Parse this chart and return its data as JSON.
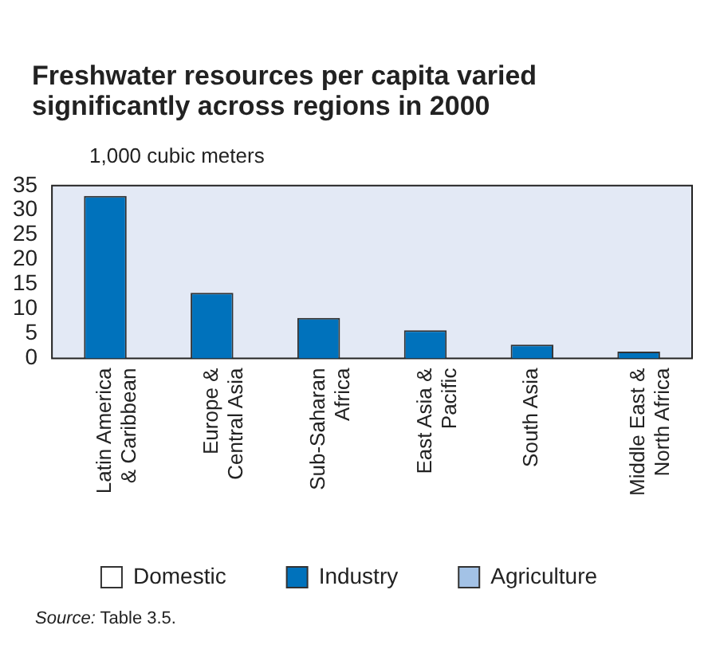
{
  "chart_data": {
    "type": "bar",
    "title": "Freshwater resources per capita varied significantly across regions in 2000",
    "ylabel": "1,000 cubic meters",
    "categories": [
      "Latin America & Caribbean",
      "Europe & Central Asia",
      "Sub-Saharan Africa",
      "East Asia & Pacific",
      "South Asia",
      "Middle East & North Africa"
    ],
    "series": [
      {
        "name": "Domestic",
        "color": "#ffffff",
        "values": [
          null,
          null,
          null,
          null,
          null,
          null
        ]
      },
      {
        "name": "Industry",
        "color": "#0072bc",
        "values": [
          32.9,
          13.3,
          8.2,
          5.7,
          2.8,
          1.4
        ]
      },
      {
        "name": "Agriculture",
        "color": "#a3c2e6",
        "values": [
          null,
          null,
          null,
          null,
          null,
          null
        ]
      }
    ],
    "ylim": [
      0,
      35
    ],
    "yticks": [
      0,
      5,
      10,
      15,
      20,
      25,
      30,
      35
    ],
    "grid": false,
    "legend": "bottom",
    "annotations": [
      "Source: Table 3.5."
    ]
  }
}
